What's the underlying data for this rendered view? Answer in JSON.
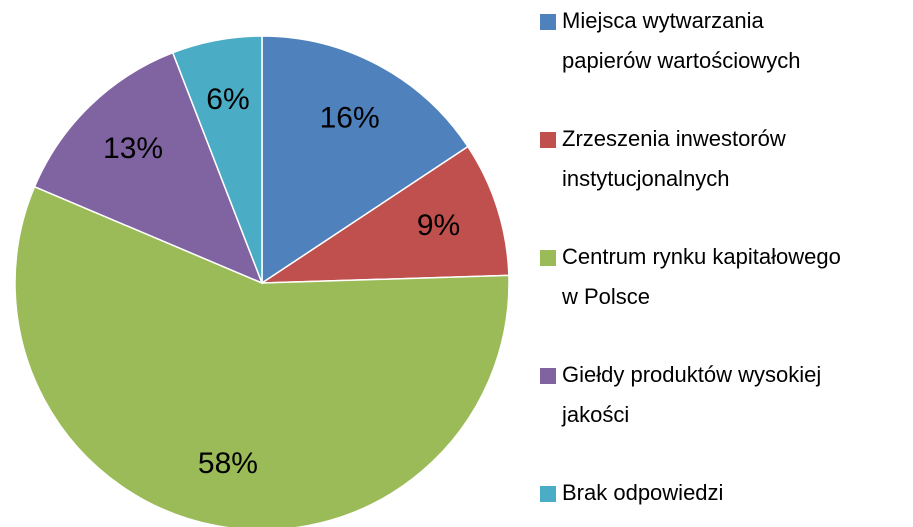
{
  "chart_data": {
    "type": "pie",
    "categories": [
      "Miejsca wytwarzania papierów wartościowych",
      "Zrzeszenia inwestorów instytucjonalnych",
      "Centrum rynku kapitałowego w Polsce",
      "Giełdy produktów wysokiej jakości",
      "Brak odpowiedzi"
    ],
    "values": [
      16,
      9,
      58,
      13,
      6
    ],
    "value_labels": [
      "16%",
      "9%",
      "58%",
      "13%",
      "6%"
    ],
    "colors": [
      "#4f81bd",
      "#c0504d",
      "#9bbb59",
      "#8064a2",
      "#4bacc6"
    ],
    "legend": "right"
  }
}
